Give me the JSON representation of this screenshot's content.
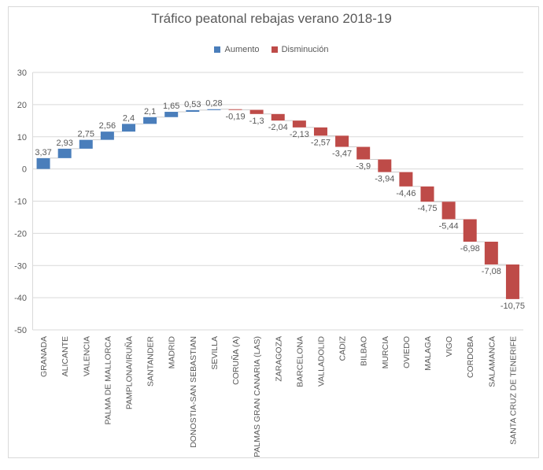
{
  "chart_data": {
    "type": "waterfall",
    "title": "Tráfico peatonal rebajas verano 2018-19",
    "legend": [
      {
        "name": "Aumento",
        "color": "#4a7ebb"
      },
      {
        "name": "Disminución",
        "color": "#be4b48"
      }
    ],
    "legend_position": "top",
    "categories": [
      "GRANADA",
      "ALICANTE",
      "VALENCIA",
      "PALMA DE MALLORCA",
      "PAMPLONA/IRUÑA",
      "SANTANDER",
      "MADRID",
      "DONOSTIA-SAN SEBASTIAN",
      "SEVILLA",
      "CORUÑA (A)",
      "PALMAS GRAN CANARIA (LAS)",
      "ZARAGOZA",
      "BARCELONA",
      "VALLADOLID",
      "CADIZ",
      "BILBAO",
      "MURCIA",
      "OVIEDO",
      "MALAGA",
      "VIGO",
      "CORDOBA",
      "SALAMANCA",
      "SANTA CRUZ DE TENERIFE"
    ],
    "values": [
      3.37,
      2.93,
      2.75,
      2.56,
      2.4,
      2.1,
      1.65,
      0.53,
      0.28,
      -0.19,
      -1.3,
      -2.04,
      -2.13,
      -2.57,
      -3.47,
      -3.9,
      -3.94,
      -4.46,
      -4.75,
      -5.44,
      -6.98,
      -7.08,
      -10.75
    ],
    "data_labels": [
      "3,37",
      "2,93",
      "2,75",
      "2,56",
      "2,4",
      "2,1",
      "1,65",
      "0,53",
      "0,28",
      "-0,19",
      "-1,3",
      "-2,04",
      "-2,13",
      "-2,57",
      "-3,47",
      "-3,9",
      "-3,94",
      "-4,46",
      "-4,75",
      "-5,44",
      "-6,98",
      "-7,08",
      "-10,75"
    ],
    "ylim": [
      -50,
      30
    ],
    "yticks": [
      "30",
      "20",
      "10",
      "0",
      "-10",
      "-20",
      "-30",
      "-40",
      "-50"
    ],
    "grid": true
  }
}
